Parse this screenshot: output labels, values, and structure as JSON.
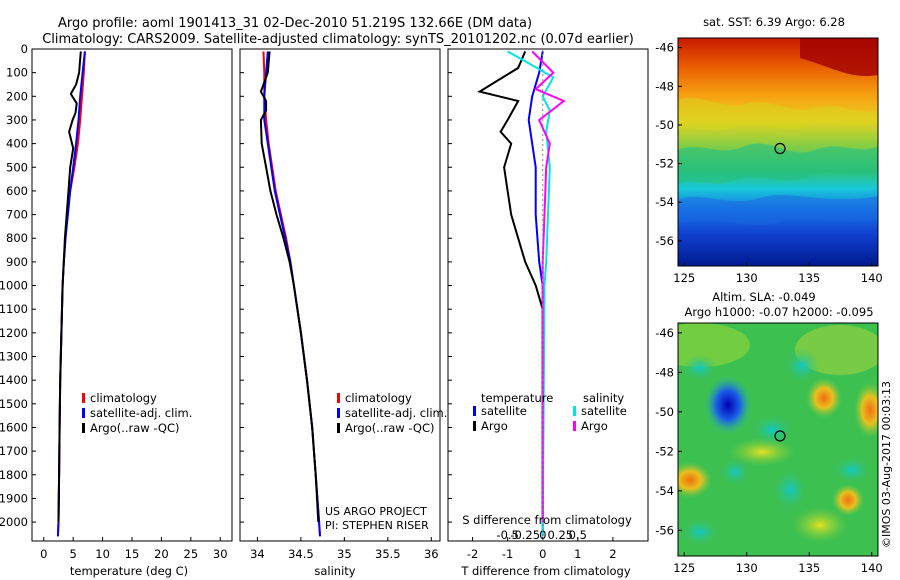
{
  "figure": {
    "title_line1": "Argo profile: aoml 1901413_31 02-Dec-2010 51.219S 132.66E (DM data)",
    "title_line2": "Climatology: CARS2009. Satellite-adjusted climatology: synTS_20101202.nc (0.07d earlier)",
    "project_line1": "US ARGO PROJECT",
    "project_line2": "PI: STEPHEN RISER",
    "credit": "©IMOS 03-Aug-2017 00:03:13"
  },
  "colors": {
    "climatology": "#ff0000",
    "satellite": "#0000ff",
    "argo": "#000000",
    "satellite_salinity": "#00e5e5",
    "argo_salinity": "#ff00ff"
  },
  "chart_data": [
    {
      "id": "temperature",
      "type": "line",
      "xlabel": "temperature (deg C)",
      "ylabel": "",
      "xlim": [
        -2,
        32
      ],
      "ylim": [
        2080,
        0
      ],
      "xticks": [
        "0",
        "5",
        "10",
        "15",
        "20",
        "25",
        "30"
      ],
      "yticks": [
        "0",
        "100",
        "200",
        "300",
        "400",
        "500",
        "600",
        "700",
        "800",
        "900",
        "1000",
        "1100",
        "1200",
        "1300",
        "1400",
        "1500",
        "1600",
        "1700",
        "1800",
        "1900",
        "2000"
      ],
      "legend": [
        "climatology",
        "satellite-adj. clim.",
        "Argo(..raw -QC)"
      ],
      "series": [
        {
          "name": "climatology",
          "color": "#ff0000",
          "points": [
            [
              7.0,
              10
            ],
            [
              6.8,
              100
            ],
            [
              6.5,
              200
            ],
            [
              6.2,
              300
            ],
            [
              5.8,
              400
            ],
            [
              5.2,
              500
            ],
            [
              4.5,
              600
            ],
            [
              4.0,
              700
            ],
            [
              3.7,
              800
            ],
            [
              3.4,
              900
            ],
            [
              3.2,
              1000
            ],
            [
              3.0,
              1200
            ],
            [
              2.8,
              1400
            ],
            [
              2.7,
              1600
            ],
            [
              2.6,
              1800
            ],
            [
              2.5,
              2000
            ],
            [
              2.4,
              2060
            ]
          ]
        },
        {
          "name": "satellite-adj. clim.",
          "color": "#0000ff",
          "points": [
            [
              7.0,
              10
            ],
            [
              6.6,
              100
            ],
            [
              6.2,
              200
            ],
            [
              5.9,
              300
            ],
            [
              5.5,
              400
            ],
            [
              5.0,
              500
            ],
            [
              4.5,
              600
            ],
            [
              4.1,
              700
            ],
            [
              3.7,
              800
            ],
            [
              3.4,
              900
            ],
            [
              3.2,
              1000
            ],
            [
              3.0,
              1200
            ],
            [
              2.8,
              1400
            ],
            [
              2.7,
              1600
            ],
            [
              2.6,
              1800
            ],
            [
              2.5,
              2000
            ],
            [
              2.4,
              2060
            ]
          ]
        },
        {
          "name": "Argo(..raw -QC)",
          "color": "#000000",
          "points": [
            [
              6.3,
              10
            ],
            [
              6.0,
              100
            ],
            [
              5.5,
              150
            ],
            [
              4.6,
              190
            ],
            [
              5.6,
              230
            ],
            [
              5.4,
              270
            ],
            [
              4.9,
              300
            ],
            [
              4.3,
              350
            ],
            [
              5.0,
              420
            ],
            [
              4.5,
              500
            ],
            [
              4.2,
              600
            ],
            [
              3.9,
              700
            ],
            [
              3.6,
              800
            ],
            [
              3.4,
              900
            ],
            [
              3.2,
              1000
            ],
            [
              3.0,
              1200
            ],
            [
              2.8,
              1400
            ],
            [
              2.7,
              1600
            ],
            [
              2.6,
              1800
            ],
            [
              2.5,
              2000
            ]
          ]
        }
      ]
    },
    {
      "id": "salinity",
      "type": "line",
      "xlabel": "salinity",
      "xlim": [
        33.8,
        36.1
      ],
      "ylim": [
        2080,
        0
      ],
      "xticks": [
        "34",
        "34.5",
        "35",
        "35.5",
        "36"
      ],
      "legend": [
        "climatology",
        "satellite-adj. clim.",
        "Argo(..raw -QC)"
      ],
      "series": [
        {
          "name": "climatology",
          "color": "#ff0000",
          "points": [
            [
              34.07,
              10
            ],
            [
              34.08,
              100
            ],
            [
              34.08,
              200
            ],
            [
              34.1,
              300
            ],
            [
              34.13,
              400
            ],
            [
              34.17,
              500
            ],
            [
              34.21,
              600
            ],
            [
              34.27,
              700
            ],
            [
              34.33,
              800
            ],
            [
              34.38,
              900
            ],
            [
              34.42,
              1000
            ],
            [
              34.5,
              1200
            ],
            [
              34.57,
              1400
            ],
            [
              34.63,
              1600
            ],
            [
              34.67,
              1800
            ],
            [
              34.71,
              2000
            ],
            [
              34.72,
              2060
            ]
          ]
        },
        {
          "name": "satellite-adj. clim.",
          "color": "#0000ff",
          "points": [
            [
              34.12,
              10
            ],
            [
              34.1,
              100
            ],
            [
              34.08,
              200
            ],
            [
              34.08,
              300
            ],
            [
              34.12,
              400
            ],
            [
              34.16,
              500
            ],
            [
              34.2,
              600
            ],
            [
              34.26,
              700
            ],
            [
              34.32,
              800
            ],
            [
              34.38,
              900
            ],
            [
              34.42,
              1000
            ],
            [
              34.5,
              1200
            ],
            [
              34.57,
              1400
            ],
            [
              34.63,
              1600
            ],
            [
              34.67,
              1800
            ],
            [
              34.71,
              2000
            ],
            [
              34.72,
              2060
            ]
          ]
        },
        {
          "name": "Argo(..raw -QC)",
          "color": "#000000",
          "points": [
            [
              34.14,
              10
            ],
            [
              34.12,
              100
            ],
            [
              34.04,
              180
            ],
            [
              34.1,
              220
            ],
            [
              34.1,
              260
            ],
            [
              34.04,
              300
            ],
            [
              34.05,
              400
            ],
            [
              34.1,
              500
            ],
            [
              34.15,
              600
            ],
            [
              34.22,
              700
            ],
            [
              34.3,
              800
            ],
            [
              34.37,
              900
            ],
            [
              34.42,
              1000
            ],
            [
              34.5,
              1200
            ],
            [
              34.57,
              1400
            ],
            [
              34.63,
              1600
            ],
            [
              34.67,
              1800
            ],
            [
              34.7,
              2000
            ]
          ]
        }
      ]
    },
    {
      "id": "differences",
      "type": "line",
      "xlabel": "T difference from climatology",
      "xlabel_top": "S difference from climatology",
      "xlim": [
        -2.7,
        3.0
      ],
      "ylim": [
        2080,
        0
      ],
      "xticks": [
        "-2",
        "-1",
        "0",
        "1",
        "2"
      ],
      "xticks_top": [
        "-0.5",
        "-0.25",
        "0",
        "0.25",
        "0.5"
      ],
      "legend_title_temperature": "temperature",
      "legend_title_salinity": "salinity",
      "legend": [
        "satellite",
        "Argo",
        "satellite",
        "Argo"
      ],
      "series": [
        {
          "name": "temperature satellite",
          "color": "#0000ff",
          "points": [
            [
              0.0,
              10
            ],
            [
              -0.1,
              100
            ],
            [
              -0.3,
              200
            ],
            [
              -0.4,
              300
            ],
            [
              -0.3,
              400
            ],
            [
              -0.2,
              500
            ],
            [
              -0.2,
              700
            ],
            [
              -0.1,
              900
            ],
            [
              0,
              1000
            ],
            [
              0,
              2060
            ]
          ]
        },
        {
          "name": "temperature Argo",
          "color": "#000000",
          "points": [
            [
              -0.5,
              10
            ],
            [
              -0.7,
              80
            ],
            [
              -1.8,
              180
            ],
            [
              -0.7,
              220
            ],
            [
              -1.0,
              300
            ],
            [
              -1.2,
              350
            ],
            [
              -0.9,
              400
            ],
            [
              -1.1,
              500
            ],
            [
              -1.0,
              600
            ],
            [
              -0.9,
              700
            ],
            [
              -0.5,
              900
            ],
            [
              -0.2,
              1000
            ],
            [
              0,
              1100
            ],
            [
              0,
              2000
            ]
          ]
        },
        {
          "name": "salinity satellite",
          "color": "#00e5e5",
          "points": [
            [
              -1.0,
              10
            ],
            [
              -0.4,
              60
            ],
            [
              0.3,
              120
            ],
            [
              0.0,
              200
            ],
            [
              0.2,
              260
            ],
            [
              0.1,
              350
            ],
            [
              0.2,
              500
            ],
            [
              0.15,
              700
            ],
            [
              0.1,
              900
            ],
            [
              0.05,
              1000
            ],
            [
              0,
              2060
            ]
          ]
        },
        {
          "name": "salinity Argo",
          "color": "#ff00ff",
          "points": [
            [
              -0.3,
              10
            ],
            [
              0.3,
              100
            ],
            [
              -0.2,
              170
            ],
            [
              0.6,
              220
            ],
            [
              -0.1,
              300
            ],
            [
              0.2,
              400
            ],
            [
              0.1,
              500
            ],
            [
              0.05,
              700
            ],
            [
              0,
              900
            ],
            [
              0,
              2000
            ]
          ]
        }
      ]
    },
    {
      "id": "sst_map",
      "type": "heatmap",
      "title": "sat. SST: 6.39 Argo: 6.28",
      "xlim": [
        124.5,
        140.5
      ],
      "ylim": [
        -57.3,
        -45.5
      ],
      "xticks": [
        "125",
        "130",
        "135",
        "140"
      ],
      "yticks": [
        "-46",
        "-48",
        "-50",
        "-52",
        "-54",
        "-56"
      ],
      "marker": [
        132.66,
        -51.22
      ]
    },
    {
      "id": "sla_map",
      "type": "heatmap",
      "title_line1": "Altim. SLA: -0.049",
      "title_line2": "Argo h1000: -0.07 h2000: -0.095",
      "xlim": [
        124.5,
        140.5
      ],
      "ylim": [
        -57.3,
        -45.5
      ],
      "xticks": [
        "125",
        "130",
        "135",
        "140"
      ],
      "yticks": [
        "-46",
        "-48",
        "-50",
        "-52",
        "-54",
        "-56"
      ],
      "marker": [
        132.66,
        -51.22
      ]
    }
  ]
}
